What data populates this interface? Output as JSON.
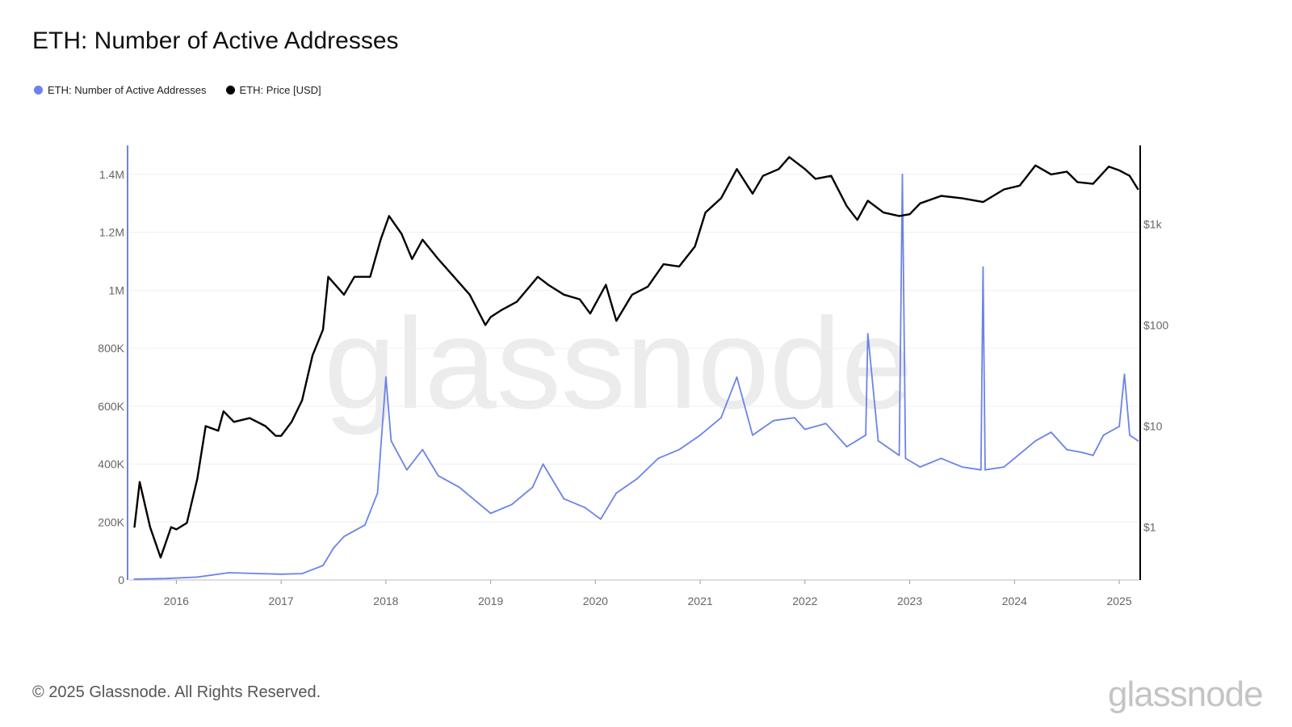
{
  "title": "ETH: Number of Active Addresses",
  "legend": [
    {
      "label": "ETH: Number of Active Addresses",
      "color": "#6b83e8"
    },
    {
      "label": "ETH: Price [USD]",
      "color": "#000000"
    }
  ],
  "footer": "© 2025 Glassnode. All Rights Reserved.",
  "brand": "glassnode",
  "watermark": "glassnode",
  "chart_data": {
    "type": "line",
    "grid": true,
    "legend_position": "top-left",
    "x_range": [
      2015.55,
      2025.2
    ],
    "x_ticks": [
      "2016",
      "2017",
      "2018",
      "2019",
      "2020",
      "2021",
      "2022",
      "2023",
      "2024",
      "2025"
    ],
    "y_left": {
      "scale": "linear",
      "range": [
        0,
        1500000
      ],
      "ticks": [
        "0",
        "200K",
        "400K",
        "600K",
        "800K",
        "1M",
        "1.2M",
        "1.4M"
      ]
    },
    "y_right": {
      "scale": "log",
      "range": [
        0.3,
        6000
      ],
      "ticks": [
        "$1",
        "$10",
        "$100",
        "$1k"
      ]
    },
    "series": [
      {
        "name": "ETH: Number of Active Addresses",
        "axis": "left",
        "color": "#6b83e8",
        "points": [
          [
            2015.6,
            3000
          ],
          [
            2015.9,
            5000
          ],
          [
            2016.2,
            10000
          ],
          [
            2016.5,
            25000
          ],
          [
            2016.8,
            22000
          ],
          [
            2017.0,
            20000
          ],
          [
            2017.2,
            22000
          ],
          [
            2017.4,
            50000
          ],
          [
            2017.5,
            110000
          ],
          [
            2017.6,
            150000
          ],
          [
            2017.8,
            190000
          ],
          [
            2017.92,
            300000
          ],
          [
            2018.0,
            700000
          ],
          [
            2018.05,
            480000
          ],
          [
            2018.2,
            380000
          ],
          [
            2018.35,
            450000
          ],
          [
            2018.5,
            360000
          ],
          [
            2018.7,
            320000
          ],
          [
            2018.9,
            260000
          ],
          [
            2019.0,
            230000
          ],
          [
            2019.2,
            260000
          ],
          [
            2019.4,
            320000
          ],
          [
            2019.5,
            400000
          ],
          [
            2019.7,
            280000
          ],
          [
            2019.9,
            250000
          ],
          [
            2020.05,
            210000
          ],
          [
            2020.2,
            300000
          ],
          [
            2020.4,
            350000
          ],
          [
            2020.6,
            420000
          ],
          [
            2020.8,
            450000
          ],
          [
            2021.0,
            500000
          ],
          [
            2021.2,
            560000
          ],
          [
            2021.35,
            700000
          ],
          [
            2021.5,
            500000
          ],
          [
            2021.7,
            550000
          ],
          [
            2021.9,
            560000
          ],
          [
            2022.0,
            520000
          ],
          [
            2022.2,
            540000
          ],
          [
            2022.4,
            460000
          ],
          [
            2022.58,
            500000
          ],
          [
            2022.6,
            850000
          ],
          [
            2022.7,
            480000
          ],
          [
            2022.9,
            430000
          ],
          [
            2022.93,
            1400000
          ],
          [
            2022.96,
            420000
          ],
          [
            2023.1,
            390000
          ],
          [
            2023.3,
            420000
          ],
          [
            2023.5,
            390000
          ],
          [
            2023.68,
            380000
          ],
          [
            2023.7,
            1080000
          ],
          [
            2023.72,
            380000
          ],
          [
            2023.9,
            390000
          ],
          [
            2024.0,
            420000
          ],
          [
            2024.2,
            480000
          ],
          [
            2024.35,
            510000
          ],
          [
            2024.5,
            450000
          ],
          [
            2024.65,
            440000
          ],
          [
            2024.75,
            430000
          ],
          [
            2024.85,
            500000
          ],
          [
            2025.0,
            530000
          ],
          [
            2025.05,
            710000
          ],
          [
            2025.1,
            500000
          ],
          [
            2025.18,
            480000
          ]
        ]
      },
      {
        "name": "ETH: Price [USD]",
        "axis": "right",
        "color": "#000000",
        "points": [
          [
            2015.6,
            1.0
          ],
          [
            2015.65,
            2.8
          ],
          [
            2015.75,
            1.0
          ],
          [
            2015.85,
            0.5
          ],
          [
            2015.95,
            1.0
          ],
          [
            2016.0,
            0.95
          ],
          [
            2016.1,
            1.1
          ],
          [
            2016.2,
            3.0
          ],
          [
            2016.28,
            10
          ],
          [
            2016.4,
            9
          ],
          [
            2016.45,
            14
          ],
          [
            2016.55,
            11
          ],
          [
            2016.7,
            12
          ],
          [
            2016.85,
            10
          ],
          [
            2016.95,
            8
          ],
          [
            2017.0,
            8
          ],
          [
            2017.1,
            11
          ],
          [
            2017.2,
            18
          ],
          [
            2017.3,
            50
          ],
          [
            2017.4,
            90
          ],
          [
            2017.45,
            300
          ],
          [
            2017.6,
            200
          ],
          [
            2017.7,
            300
          ],
          [
            2017.85,
            300
          ],
          [
            2017.95,
            700
          ],
          [
            2018.03,
            1200
          ],
          [
            2018.15,
            800
          ],
          [
            2018.25,
            450
          ],
          [
            2018.35,
            700
          ],
          [
            2018.5,
            450
          ],
          [
            2018.65,
            300
          ],
          [
            2018.8,
            200
          ],
          [
            2018.95,
            100
          ],
          [
            2019.0,
            120
          ],
          [
            2019.1,
            140
          ],
          [
            2019.25,
            170
          ],
          [
            2019.45,
            300
          ],
          [
            2019.55,
            250
          ],
          [
            2019.7,
            200
          ],
          [
            2019.85,
            180
          ],
          [
            2019.95,
            130
          ],
          [
            2020.1,
            250
          ],
          [
            2020.2,
            110
          ],
          [
            2020.35,
            200
          ],
          [
            2020.5,
            240
          ],
          [
            2020.65,
            400
          ],
          [
            2020.8,
            380
          ],
          [
            2020.95,
            600
          ],
          [
            2021.05,
            1300
          ],
          [
            2021.2,
            1800
          ],
          [
            2021.35,
            3500
          ],
          [
            2021.5,
            2000
          ],
          [
            2021.6,
            3000
          ],
          [
            2021.75,
            3500
          ],
          [
            2021.85,
            4600
          ],
          [
            2022.0,
            3500
          ],
          [
            2022.1,
            2800
          ],
          [
            2022.25,
            3000
          ],
          [
            2022.4,
            1500
          ],
          [
            2022.5,
            1100
          ],
          [
            2022.6,
            1700
          ],
          [
            2022.75,
            1300
          ],
          [
            2022.9,
            1200
          ],
          [
            2023.0,
            1250
          ],
          [
            2023.1,
            1600
          ],
          [
            2023.3,
            1900
          ],
          [
            2023.5,
            1800
          ],
          [
            2023.7,
            1650
          ],
          [
            2023.9,
            2200
          ],
          [
            2024.05,
            2400
          ],
          [
            2024.2,
            3800
          ],
          [
            2024.35,
            3100
          ],
          [
            2024.5,
            3300
          ],
          [
            2024.6,
            2600
          ],
          [
            2024.75,
            2500
          ],
          [
            2024.9,
            3700
          ],
          [
            2025.0,
            3400
          ],
          [
            2025.1,
            3000
          ],
          [
            2025.18,
            2200
          ]
        ]
      }
    ]
  }
}
